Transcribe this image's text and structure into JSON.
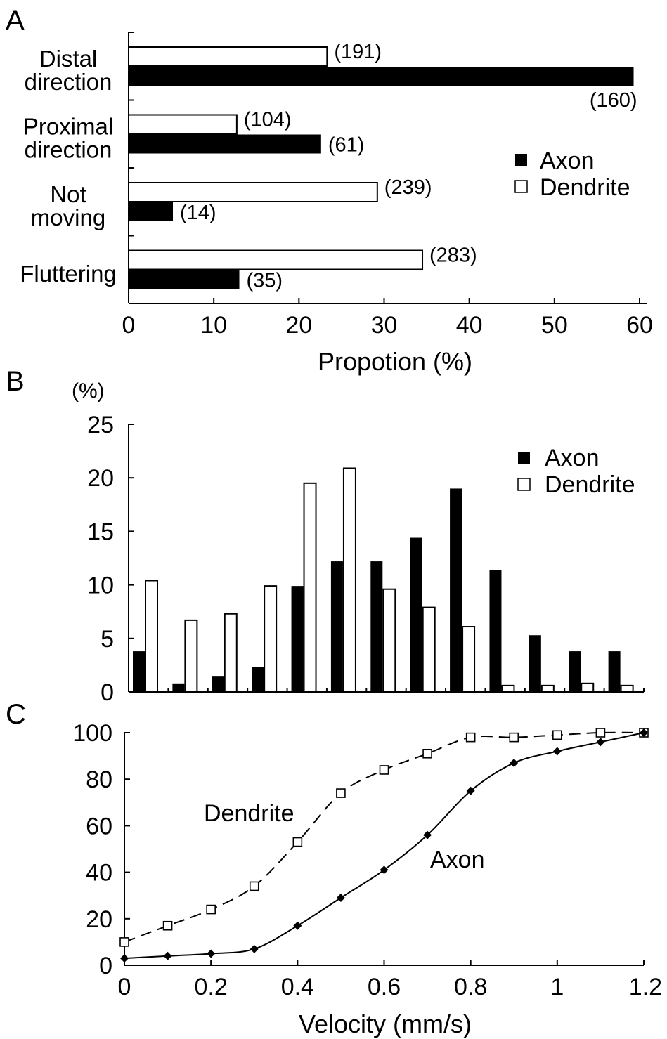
{
  "chart_data": [
    {
      "panel": "A",
      "type": "bar",
      "orientation": "horizontal",
      "categories": [
        [
          "Distal",
          "direction"
        ],
        [
          "Proximal",
          "direction"
        ],
        [
          "Not",
          "moving"
        ],
        [
          "Fluttering"
        ]
      ],
      "series": [
        {
          "name": "Axon",
          "values": [
            59.3,
            22.6,
            5.2,
            13.0
          ],
          "labels": [
            "(160)",
            "(61)",
            "(14)",
            "(35)"
          ],
          "fill": "#000000"
        },
        {
          "name": "Dendrite",
          "values": [
            23.3,
            12.7,
            29.2,
            34.5
          ],
          "labels": [
            "(191)",
            "(104)",
            "(239)",
            "(283)"
          ],
          "fill": "#ffffff"
        }
      ],
      "xlabel": "Propotion (%)",
      "xlim": [
        0,
        60
      ],
      "xticks": [
        "0",
        "10",
        "20",
        "30",
        "40",
        "50",
        "60"
      ],
      "legend": "right"
    },
    {
      "panel": "B",
      "type": "bar",
      "ylabel": "(%)",
      "ylim": [
        0,
        25
      ],
      "yticks": [
        "0",
        "5",
        "10",
        "15",
        "20",
        "25"
      ],
      "series": [
        {
          "name": "Axon",
          "values": [
            3.8,
            0.8,
            1.5,
            2.3,
            9.9,
            12.2,
            12.2,
            14.4,
            19.0,
            11.4,
            5.3,
            3.8,
            3.8
          ],
          "fill": "#000000"
        },
        {
          "name": "Dendrite",
          "values": [
            10.4,
            6.7,
            7.3,
            9.9,
            19.5,
            20.9,
            9.6,
            7.9,
            6.1,
            0.6,
            0.6,
            0.8,
            0.6
          ],
          "fill": "#ffffff"
        }
      ],
      "legend": "top-right"
    },
    {
      "panel": "C",
      "type": "line",
      "xlabel": "Velocity (mm/s)",
      "xlim": [
        0,
        1.2
      ],
      "ylim": [
        0,
        100
      ],
      "xticks": [
        "0",
        "0.2",
        "0.4",
        "0.6",
        "0.8",
        "1",
        "1.2"
      ],
      "yticks": [
        "0",
        "20",
        "40",
        "60",
        "80",
        "100"
      ],
      "series": [
        {
          "name": "Dendrite",
          "x": [
            0,
            0.1,
            0.2,
            0.3,
            0.4,
            0.5,
            0.6,
            0.7,
            0.8,
            0.9,
            1.0,
            1.1,
            1.2
          ],
          "y": [
            10,
            17,
            24,
            34,
            53,
            74,
            84,
            91,
            98,
            98,
            99,
            100,
            100
          ],
          "marker": "open-square",
          "dashed": true
        },
        {
          "name": "Axon",
          "x": [
            0,
            0.1,
            0.2,
            0.3,
            0.4,
            0.5,
            0.6,
            0.7,
            0.8,
            0.9,
            1.0,
            1.1,
            1.2
          ],
          "y": [
            3,
            4,
            5,
            7,
            17,
            29,
            41,
            56,
            75,
            87,
            92,
            96,
            100
          ],
          "marker": "filled-diamond",
          "dashed": false
        }
      ]
    }
  ],
  "panels": {
    "a": {
      "letter": "A",
      "legend_axon": "Axon",
      "legend_dendrite": "Dendrite"
    },
    "b": {
      "letter": "B",
      "legend_axon": "Axon",
      "legend_dendrite": "Dendrite"
    },
    "c": {
      "letter": "C",
      "label_dendrite": "Dendrite",
      "label_axon": "Axon"
    }
  }
}
